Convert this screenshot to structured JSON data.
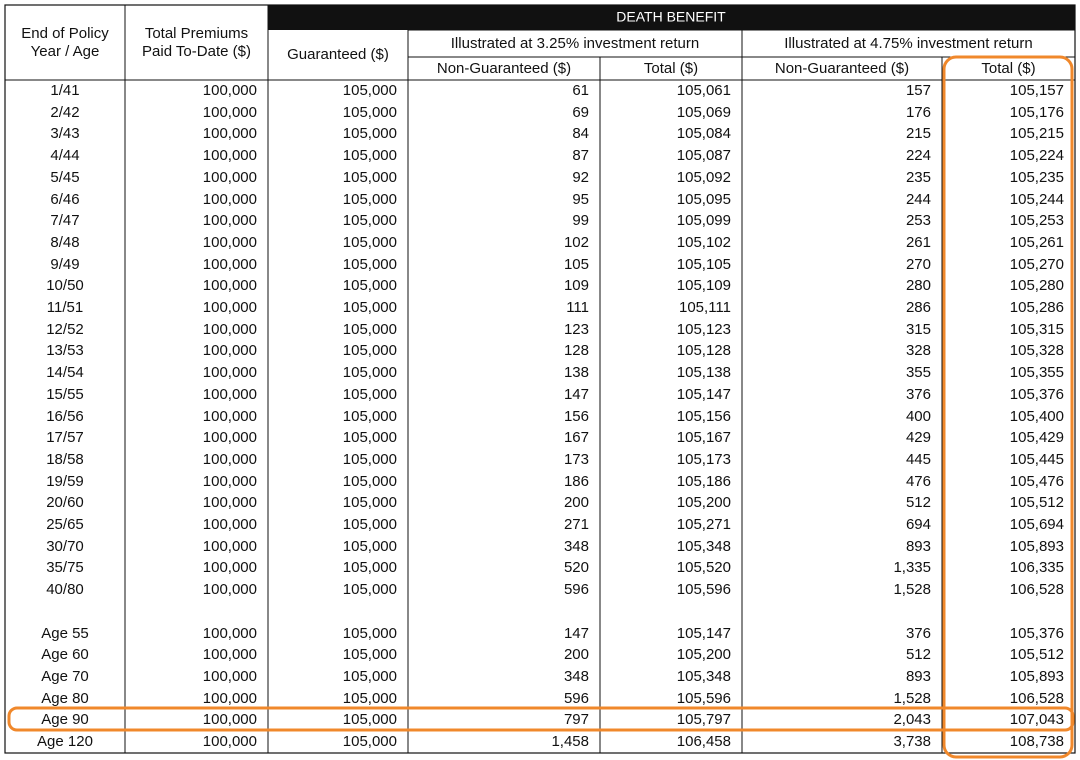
{
  "header": {
    "group_title": "DEATH BENEFIT",
    "col_year": "End of Policy Year / Age",
    "col_premiums": "Total Premiums Paid To-Date ($)",
    "col_guaranteed": "Guaranteed ($)",
    "illus_low": "Illustrated at 3.25% investment return",
    "illus_high": "Illustrated at 4.75% investment return",
    "low_nonguar": "Non-Guaranteed ($)",
    "low_total": "Total ($)",
    "high_nonguar": "Non-Guaranteed ($)",
    "high_total": "Total ($)"
  },
  "table": {
    "rows": [
      [
        "1/41",
        "100,000",
        "105,000",
        "61",
        "105,061",
        "157",
        "105,157"
      ],
      [
        "2/42",
        "100,000",
        "105,000",
        "69",
        "105,069",
        "176",
        "105,176"
      ],
      [
        "3/43",
        "100,000",
        "105,000",
        "84",
        "105,084",
        "215",
        "105,215"
      ],
      [
        "4/44",
        "100,000",
        "105,000",
        "87",
        "105,087",
        "224",
        "105,224"
      ],
      [
        "5/45",
        "100,000",
        "105,000",
        "92",
        "105,092",
        "235",
        "105,235"
      ],
      [
        "6/46",
        "100,000",
        "105,000",
        "95",
        "105,095",
        "244",
        "105,244"
      ],
      [
        "7/47",
        "100,000",
        "105,000",
        "99",
        "105,099",
        "253",
        "105,253"
      ],
      [
        "8/48",
        "100,000",
        "105,000",
        "102",
        "105,102",
        "261",
        "105,261"
      ],
      [
        "9/49",
        "100,000",
        "105,000",
        "105",
        "105,105",
        "270",
        "105,270"
      ],
      [
        "10/50",
        "100,000",
        "105,000",
        "109",
        "105,109",
        "280",
        "105,280"
      ],
      [
        "11/51",
        "100,000",
        "105,000",
        "111",
        "105,111",
        "286",
        "105,286"
      ],
      [
        "12/52",
        "100,000",
        "105,000",
        "123",
        "105,123",
        "315",
        "105,315"
      ],
      [
        "13/53",
        "100,000",
        "105,000",
        "128",
        "105,128",
        "328",
        "105,328"
      ],
      [
        "14/54",
        "100,000",
        "105,000",
        "138",
        "105,138",
        "355",
        "105,355"
      ],
      [
        "15/55",
        "100,000",
        "105,000",
        "147",
        "105,147",
        "376",
        "105,376"
      ],
      [
        "16/56",
        "100,000",
        "105,000",
        "156",
        "105,156",
        "400",
        "105,400"
      ],
      [
        "17/57",
        "100,000",
        "105,000",
        "167",
        "105,167",
        "429",
        "105,429"
      ],
      [
        "18/58",
        "100,000",
        "105,000",
        "173",
        "105,173",
        "445",
        "105,445"
      ],
      [
        "19/59",
        "100,000",
        "105,000",
        "186",
        "105,186",
        "476",
        "105,476"
      ],
      [
        "20/60",
        "100,000",
        "105,000",
        "200",
        "105,200",
        "512",
        "105,512"
      ],
      [
        "25/65",
        "100,000",
        "105,000",
        "271",
        "105,271",
        "694",
        "105,694"
      ],
      [
        "30/70",
        "100,000",
        "105,000",
        "348",
        "105,348",
        "893",
        "105,893"
      ],
      [
        "35/75",
        "100,000",
        "105,000",
        "520",
        "105,520",
        "1,335",
        "106,335"
      ],
      [
        "40/80",
        "100,000",
        "105,000",
        "596",
        "105,596",
        "1,528",
        "106,528"
      ]
    ],
    "age_rows": [
      [
        "Age 55",
        "100,000",
        "105,000",
        "147",
        "105,147",
        "376",
        "105,376"
      ],
      [
        "Age 60",
        "100,000",
        "105,000",
        "200",
        "105,200",
        "512",
        "105,512"
      ],
      [
        "Age 70",
        "100,000",
        "105,000",
        "348",
        "105,348",
        "893",
        "105,893"
      ],
      [
        "Age 80",
        "100,000",
        "105,000",
        "596",
        "105,596",
        "1,528",
        "106,528"
      ],
      [
        "Age 90",
        "100,000",
        "105,000",
        "797",
        "105,797",
        "2,043",
        "107,043"
      ],
      [
        "Age 120",
        "100,000",
        "105,000",
        "1,458",
        "106,458",
        "3,738",
        "108,738"
      ]
    ]
  }
}
